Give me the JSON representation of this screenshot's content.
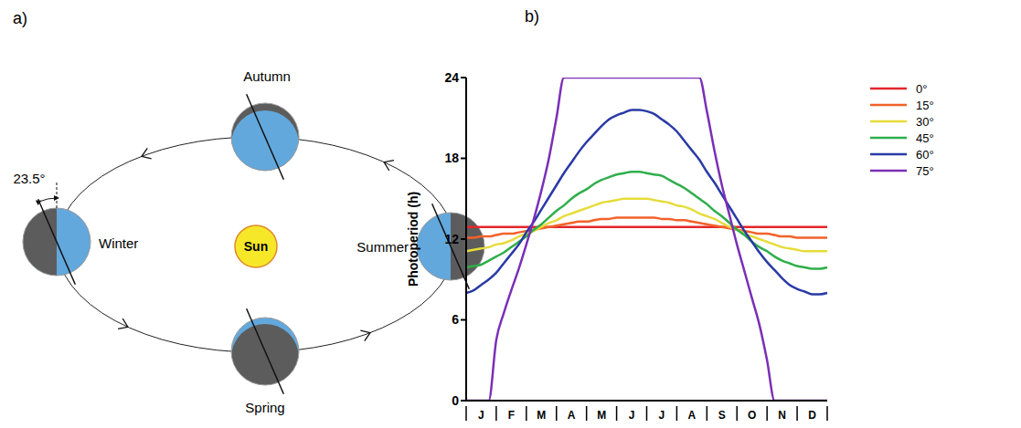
{
  "panel_labels": [
    "a)",
    "b)"
  ],
  "diagram": {
    "sun": "Sun",
    "tilt_label": "23.5°",
    "seasons": {
      "winter": "Winter",
      "summer": "Summer",
      "autumn": "Autumn",
      "spring": "Spring"
    }
  },
  "chart_data": {
    "type": "line",
    "y_label": "Photoperiod (h)",
    "categories": [
      null,
      null,
      "J",
      null,
      null,
      null,
      "F",
      null,
      null,
      null,
      "M",
      null,
      null,
      null,
      "A",
      null,
      null,
      null,
      "M",
      null,
      null,
      null,
      "J",
      null,
      null,
      null,
      "J",
      null,
      null,
      null,
      "A",
      null,
      null,
      null,
      "S",
      null,
      null,
      null,
      "O",
      null,
      null,
      null,
      "N",
      null,
      null,
      null,
      "D",
      null,
      null
    ],
    "ylim": [
      0,
      24
    ],
    "yticks": [
      0,
      6,
      12,
      18,
      24
    ],
    "grid": false,
    "legend": "right",
    "series": [
      {
        "name": "0°",
        "color": "#e3262b",
        "values": [
          12.9,
          12.9,
          12.9,
          12.9,
          12.9,
          12.9,
          12.9,
          12.9,
          12.9,
          12.9,
          12.9,
          12.9,
          12.9,
          12.9,
          12.9,
          12.9,
          12.9,
          12.9,
          12.9,
          12.9,
          12.9,
          12.9,
          12.9,
          12.9,
          12.9,
          12.9,
          12.9,
          12.9,
          12.9,
          12.9,
          12.9,
          12.9,
          12.9,
          12.9,
          12.9,
          12.9,
          12.9,
          12.9,
          12.9,
          12.9,
          12.9,
          12.9,
          12.9,
          12.9,
          12.9,
          12.9,
          12.9,
          12.9,
          12.9
        ]
      },
      {
        "name": "15°",
        "color": "#f2622a",
        "values": [
          12.1,
          12.1,
          12.2,
          12.2,
          12.3,
          12.4,
          12.4,
          12.5,
          12.6,
          12.7,
          12.8,
          12.9,
          13.0,
          13.1,
          13.2,
          13.3,
          13.3,
          13.4,
          13.5,
          13.5,
          13.6,
          13.6,
          13.6,
          13.6,
          13.6,
          13.6,
          13.5,
          13.5,
          13.4,
          13.4,
          13.3,
          13.2,
          13.1,
          13.0,
          12.9,
          12.8,
          12.7,
          12.6,
          12.5,
          12.4,
          12.4,
          12.3,
          12.2,
          12.2,
          12.1,
          12.1,
          12.1,
          12.1,
          12.1
        ]
      },
      {
        "name": "30°",
        "color": "#e6dc3a",
        "values": [
          11.1,
          11.2,
          11.3,
          11.4,
          11.6,
          11.7,
          11.9,
          12.2,
          12.4,
          12.6,
          12.9,
          13.2,
          13.4,
          13.7,
          13.9,
          14.1,
          14.3,
          14.5,
          14.7,
          14.8,
          14.9,
          15.0,
          15.0,
          15.0,
          15.0,
          14.9,
          14.8,
          14.7,
          14.5,
          14.4,
          14.2,
          13.9,
          13.7,
          13.5,
          13.2,
          12.9,
          12.7,
          12.4,
          12.2,
          12.0,
          11.8,
          11.6,
          11.4,
          11.3,
          11.2,
          11.1,
          11.1,
          11.1,
          11.1
        ]
      },
      {
        "name": "45°",
        "color": "#2fae4b",
        "values": [
          9.9,
          10.0,
          10.1,
          10.4,
          10.7,
          11.0,
          11.4,
          11.8,
          12.2,
          12.7,
          13.1,
          13.6,
          14.1,
          14.5,
          15.0,
          15.4,
          15.7,
          16.1,
          16.4,
          16.6,
          16.8,
          16.9,
          17.0,
          17.0,
          16.9,
          16.8,
          16.7,
          16.4,
          16.1,
          15.8,
          15.4,
          15.0,
          14.6,
          14.1,
          13.7,
          13.2,
          12.7,
          12.3,
          11.8,
          11.4,
          11.1,
          10.7,
          10.4,
          10.2,
          10.0,
          9.9,
          9.8,
          9.8,
          9.9
        ]
      },
      {
        "name": "60°",
        "color": "#2a3aa6",
        "values": [
          8.0,
          8.2,
          8.6,
          9.0,
          9.5,
          10.2,
          10.9,
          11.6,
          12.5,
          13.3,
          14.2,
          15.1,
          16.0,
          16.9,
          17.7,
          18.5,
          19.2,
          19.8,
          20.4,
          20.9,
          21.2,
          21.4,
          21.6,
          21.6,
          21.5,
          21.3,
          20.9,
          20.5,
          20.0,
          19.3,
          18.6,
          17.9,
          17.0,
          16.2,
          15.3,
          14.4,
          13.5,
          12.6,
          11.8,
          11.0,
          10.3,
          9.7,
          9.1,
          8.6,
          8.3,
          8.1,
          7.9,
          7.9,
          8.0
        ]
      },
      {
        "name": "75°",
        "color": "#7b2fb6",
        "values": [
          0,
          0,
          0,
          0,
          4.5,
          6.5,
          8.2,
          9.8,
          11.6,
          13.5,
          15.6,
          18.0,
          21.0,
          24,
          24,
          24,
          24,
          24,
          24,
          24,
          24,
          24,
          24,
          24,
          24,
          24,
          24,
          24,
          24,
          24,
          24,
          24,
          21.5,
          18.6,
          16.0,
          13.8,
          11.6,
          9.6,
          7.6,
          5.6,
          3.0,
          0,
          0,
          0,
          0,
          0,
          0,
          0,
          0
        ]
      }
    ]
  }
}
